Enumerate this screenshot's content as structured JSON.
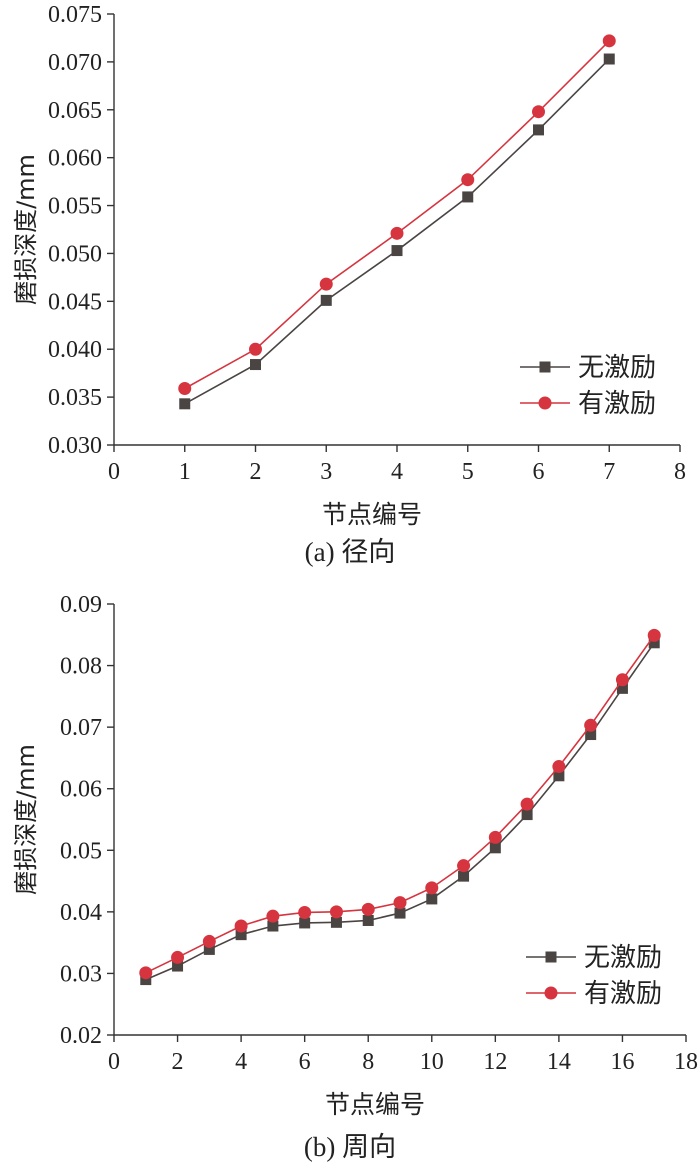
{
  "chart_data": [
    {
      "type": "line",
      "caption": "(a)  径向",
      "xlabel": "节点编号",
      "ylabel": "磨损深度/mm",
      "xlim": [
        0,
        8
      ],
      "ylim": [
        0.03,
        0.075
      ],
      "xticks": [
        "0",
        "1",
        "2",
        "3",
        "4",
        "5",
        "6",
        "7",
        "8"
      ],
      "yticks": [
        "0.030",
        "0.035",
        "0.040",
        "0.045",
        "0.050",
        "0.055",
        "0.060",
        "0.065",
        "0.070",
        "0.075"
      ],
      "legend": "lower-right",
      "grid": false,
      "x": [
        1,
        2,
        3,
        4,
        5,
        6,
        7
      ],
      "series": [
        {
          "name": "无激励",
          "marker": "square",
          "color": "#4a4543",
          "values": [
            0.0343,
            0.0384,
            0.0451,
            0.0503,
            0.0559,
            0.0629,
            0.0703
          ]
        },
        {
          "name": "有激励",
          "marker": "circle",
          "color": "#d6343f",
          "values": [
            0.0359,
            0.04,
            0.0468,
            0.0521,
            0.0577,
            0.0648,
            0.0722
          ]
        }
      ]
    },
    {
      "type": "line",
      "caption": "(b)  周向",
      "xlabel": "节点编号",
      "ylabel": "磨损深度/mm",
      "xlim": [
        0,
        18
      ],
      "ylim": [
        0.02,
        0.09
      ],
      "xticks": [
        "0",
        "2",
        "4",
        "6",
        "8",
        "10",
        "12",
        "14",
        "16",
        "18"
      ],
      "yticks": [
        "0.02",
        "0.03",
        "0.04",
        "0.05",
        "0.06",
        "0.07",
        "0.08",
        "0.09"
      ],
      "legend": "lower-right",
      "grid": false,
      "x": [
        1,
        2,
        3,
        4,
        5,
        6,
        7,
        8,
        9,
        10,
        11,
        12,
        13,
        14,
        15,
        16,
        17
      ],
      "series": [
        {
          "name": "无激励",
          "marker": "square",
          "color": "#4a4543",
          "values": [
            0.029,
            0.0312,
            0.0339,
            0.0363,
            0.0377,
            0.0382,
            0.0383,
            0.0386,
            0.0398,
            0.0421,
            0.0458,
            0.0504,
            0.0558,
            0.0621,
            0.0688,
            0.0763,
            0.0837
          ]
        },
        {
          "name": "有激励",
          "marker": "circle",
          "color": "#d6343f",
          "values": [
            0.0301,
            0.0326,
            0.0352,
            0.0377,
            0.0393,
            0.0399,
            0.04,
            0.0404,
            0.0415,
            0.0439,
            0.0475,
            0.0521,
            0.0575,
            0.0636,
            0.0703,
            0.0777,
            0.0849
          ]
        }
      ]
    }
  ]
}
